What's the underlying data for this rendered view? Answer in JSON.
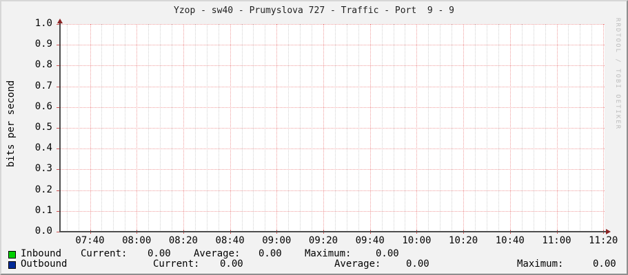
{
  "title": "Yzop - sw40 - Prumyslova 727 - Traffic - Port  9 - 9",
  "watermark": "RRDTOOL / TOBI OETIKER",
  "chart_data": {
    "type": "line",
    "title": "Yzop - sw40 - Prumyslova 727 - Traffic - Port  9 - 9",
    "xlabel": "",
    "ylabel": "bits per second",
    "ylim": [
      0.0,
      1.0
    ],
    "grid": true,
    "legend_position": "bottom",
    "y_ticks": [
      "1.0",
      "0.9",
      "0.8",
      "0.7",
      "0.6",
      "0.5",
      "0.4",
      "0.3",
      "0.2",
      "0.1",
      "0.0"
    ],
    "x_ticks": [
      "07:40",
      "08:00",
      "08:20",
      "08:40",
      "09:00",
      "09:20",
      "09:40",
      "10:00",
      "10:20",
      "10:40",
      "11:00",
      "11:20"
    ],
    "series": [
      {
        "name": "Inbound",
        "color": "#00CF00",
        "values": [],
        "current": 0.0,
        "average": 0.0,
        "maximum": 0.0
      },
      {
        "name": "Outbound",
        "color": "#002A97",
        "values": [],
        "current": 0.0,
        "average": 0.0,
        "maximum": 0.0
      }
    ]
  },
  "legend": {
    "rows": [
      {
        "name": "Inbound",
        "color": "#00CF00",
        "stats": [
          {
            "label": "Current:",
            "value": "0.00"
          },
          {
            "label": "Average:",
            "value": "0.00"
          },
          {
            "label": "Maximum:",
            "value": "0.00"
          }
        ]
      },
      {
        "name": "Outbound",
        "color": "#002A97",
        "stats": [
          {
            "label": "Current:",
            "value": "0.00"
          },
          {
            "label": "Average:",
            "value": "0.00"
          },
          {
            "label": "Maximum:",
            "value": "0.00"
          }
        ]
      }
    ]
  },
  "colors": {
    "background": "#f2f2f2",
    "plot_background": "#ffffff",
    "axis": "#4d4d4d",
    "arrow": "#8b2323",
    "grid_major": "#f09c9c",
    "grid_minor": "#d2d2d2",
    "tick": "#d05050",
    "inbound": "#00CF00",
    "outbound": "#002A97",
    "watermark_text": "#bdbdbd"
  }
}
